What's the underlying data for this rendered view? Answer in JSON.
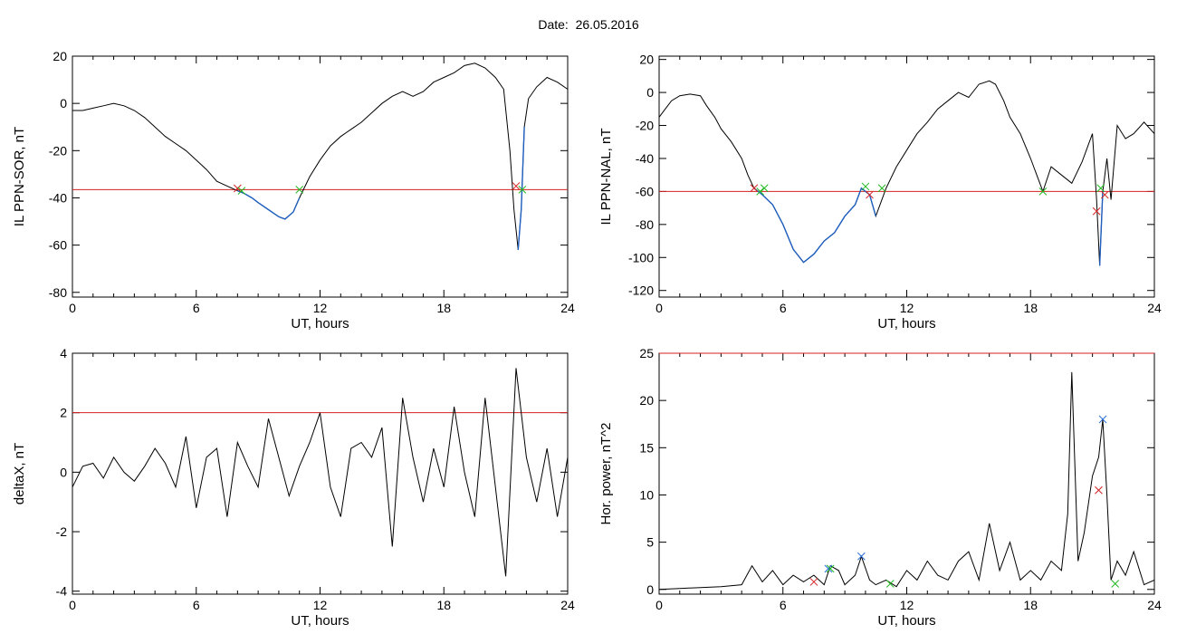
{
  "figure_title": "Date:  26.05.2016",
  "colors": {
    "trace": "#000000",
    "threshold": "#d62020",
    "event_trace": "#1f5fbf",
    "cross_red": "#d62020",
    "cross_green": "#22bb22",
    "cross_blue": "#2a6fd6"
  },
  "chart_data": [
    {
      "type": "line",
      "id": "sor",
      "xlabel": "UT, hours",
      "ylabel": "IL PPN-SOR, nT",
      "xlim": [
        0,
        24
      ],
      "ylim": [
        -82,
        20
      ],
      "xticks": [
        0,
        6,
        12,
        18,
        24
      ],
      "yticks": [
        -80,
        -60,
        -40,
        -20,
        0,
        20
      ],
      "threshold": -36.5,
      "series": [
        {
          "color": "black",
          "x": [
            0,
            0.5,
            1,
            1.5,
            2,
            2.5,
            3,
            3.5,
            4,
            4.5,
            5,
            5.5,
            6,
            6.5,
            7,
            7.5,
            8,
            8.3,
            8.7,
            9,
            9.5,
            10,
            10.3,
            10.7,
            11,
            11.5,
            12,
            12.5,
            13,
            13.5,
            14,
            14.5,
            15,
            15.5,
            16,
            16.5,
            17,
            17.5,
            18,
            18.5,
            19,
            19.5,
            20,
            20.5,
            20.9,
            21.2,
            21.4,
            21.6,
            21.75,
            21.9,
            22.1,
            22.5,
            23,
            23.5,
            24
          ],
          "y": [
            -3,
            -3,
            -2,
            -1,
            0,
            -1,
            -3,
            -6,
            -10,
            -14,
            -17,
            -20,
            -24,
            -28,
            -33,
            -35,
            -37,
            -38,
            -40,
            -42,
            -45,
            -48,
            -49,
            -46,
            -40,
            -31,
            -24,
            -18,
            -14,
            -11,
            -8,
            -4,
            0,
            3,
            5,
            3,
            5,
            9,
            11,
            13,
            16,
            17,
            15,
            11,
            6,
            -20,
            -45,
            -62,
            -45,
            -10,
            2,
            7,
            11,
            9,
            6
          ]
        }
      ],
      "highlight_segments": [
        {
          "from": 8.0,
          "to": 11.0
        },
        {
          "from": 21.5,
          "to": 21.9
        }
      ],
      "crosses": [
        {
          "x": 8.0,
          "y": -36,
          "color": "red"
        },
        {
          "x": 8.2,
          "y": -37,
          "color": "green"
        },
        {
          "x": 11.0,
          "y": -36.5,
          "color": "green"
        },
        {
          "x": 21.5,
          "y": -35,
          "color": "red"
        },
        {
          "x": 21.8,
          "y": -36.5,
          "color": "green"
        }
      ]
    },
    {
      "type": "line",
      "id": "nal",
      "xlabel": "UT, hours",
      "ylabel": "IL PPN-NAL, nT",
      "xlim": [
        0,
        24
      ],
      "ylim": [
        -124,
        22
      ],
      "xticks": [
        0,
        6,
        12,
        18,
        24
      ],
      "yticks": [
        -120,
        -100,
        -80,
        -60,
        -40,
        -20,
        0,
        20
      ],
      "threshold": -60,
      "series": [
        {
          "color": "black",
          "x": [
            0,
            0.3,
            0.6,
            1,
            1.5,
            2,
            2.3,
            2.7,
            3,
            3.5,
            4,
            4.3,
            4.6,
            5,
            5.5,
            6,
            6.5,
            7,
            7.5,
            8,
            8.5,
            9,
            9.5,
            9.8,
            10.2,
            10.5,
            11,
            11.5,
            12,
            12.5,
            13,
            13.5,
            14,
            14.5,
            15,
            15.5,
            16,
            16.3,
            16.7,
            17,
            17.5,
            18,
            18.3,
            18.6,
            19,
            19.5,
            20,
            20.5,
            21,
            21.2,
            21.35,
            21.5,
            21.7,
            21.9,
            22.2,
            22.6,
            23,
            23.5,
            24
          ],
          "y": [
            -15,
            -10,
            -5,
            -2,
            -1,
            -2,
            -8,
            -15,
            -22,
            -30,
            -40,
            -50,
            -58,
            -62,
            -68,
            -80,
            -95,
            -103,
            -98,
            -90,
            -85,
            -75,
            -68,
            -58,
            -62,
            -75,
            -58,
            -45,
            -35,
            -25,
            -18,
            -10,
            -5,
            0,
            -3,
            5,
            7,
            5,
            -5,
            -15,
            -25,
            -40,
            -50,
            -60,
            -45,
            -50,
            -55,
            -42,
            -25,
            -65,
            -105,
            -60,
            -40,
            -65,
            -20,
            -28,
            -25,
            -18,
            -25
          ]
        }
      ],
      "highlight_segments": [
        {
          "from": 4.5,
          "to": 10.8
        },
        {
          "from": 18.6,
          "to": 18.7
        },
        {
          "from": 21.3,
          "to": 21.6
        }
      ],
      "crosses": [
        {
          "x": 4.6,
          "y": -58,
          "color": "red"
        },
        {
          "x": 4.9,
          "y": -60,
          "color": "green"
        },
        {
          "x": 5.1,
          "y": -58,
          "color": "green"
        },
        {
          "x": 10.0,
          "y": -57,
          "color": "green"
        },
        {
          "x": 10.2,
          "y": -62,
          "color": "red"
        },
        {
          "x": 10.8,
          "y": -58,
          "color": "green"
        },
        {
          "x": 18.6,
          "y": -60,
          "color": "green"
        },
        {
          "x": 21.2,
          "y": -72,
          "color": "red"
        },
        {
          "x": 21.4,
          "y": -58,
          "color": "green"
        },
        {
          "x": 21.6,
          "y": -62,
          "color": "red"
        }
      ]
    },
    {
      "type": "line",
      "id": "deltax",
      "xlabel": "UT, hours",
      "ylabel": "deltaX, nT",
      "xlim": [
        0,
        24
      ],
      "ylim": [
        -4.1,
        4
      ],
      "xticks": [
        0,
        6,
        12,
        18,
        24
      ],
      "yticks": [
        -4,
        -2,
        0,
        2,
        4
      ],
      "threshold": 2,
      "series": [
        {
          "color": "black",
          "x": [
            0,
            0.5,
            1,
            1.5,
            2,
            2.5,
            3,
            3.5,
            4,
            4.5,
            5,
            5.5,
            6,
            6.5,
            7,
            7.5,
            8,
            8.5,
            9,
            9.5,
            10,
            10.5,
            11,
            11.5,
            12,
            12.5,
            13,
            13.5,
            14,
            14.5,
            15,
            15.5,
            16,
            16.5,
            17,
            17.5,
            18,
            18.5,
            19,
            19.5,
            20,
            20.5,
            21,
            21.5,
            22,
            22.5,
            23,
            23.5,
            24
          ],
          "y": [
            -0.5,
            0.2,
            0.3,
            -0.2,
            0.5,
            0,
            -0.3,
            0.2,
            0.8,
            0.3,
            -0.5,
            1.2,
            -1.2,
            0.5,
            0.8,
            -1.5,
            1,
            0.2,
            -0.5,
            1.8,
            0.5,
            -0.8,
            0.2,
            1,
            2,
            -0.5,
            -1.5,
            0.8,
            1,
            0.5,
            1.5,
            -2.5,
            2.5,
            0.5,
            -1,
            0.8,
            -0.5,
            2.2,
            0,
            -1.5,
            2.5,
            -0.5,
            -3.5,
            3.5,
            0.5,
            -1,
            0.8,
            -1.5,
            0.5
          ]
        }
      ]
    },
    {
      "type": "line",
      "id": "power",
      "xlabel": "UT, hours",
      "ylabel": "Hor. power, nT^2",
      "xlim": [
        0,
        24
      ],
      "ylim": [
        -0.5,
        25
      ],
      "xticks": [
        0,
        6,
        12,
        18,
        24
      ],
      "yticks": [
        0,
        5,
        10,
        15,
        20,
        25
      ],
      "threshold": 25,
      "series": [
        {
          "color": "black",
          "x": [
            0,
            1,
            2,
            3,
            4,
            4.5,
            5,
            5.5,
            6,
            6.5,
            7,
            7.5,
            8,
            8.3,
            8.7,
            9,
            9.5,
            9.8,
            10.2,
            10.5,
            11,
            11.5,
            12,
            12.5,
            13,
            13.5,
            14,
            14.5,
            15,
            15.5,
            16,
            16.5,
            17,
            17.5,
            18,
            18.5,
            19,
            19.5,
            19.8,
            20,
            20.3,
            20.6,
            21,
            21.3,
            21.5,
            21.7,
            21.9,
            22.2,
            22.6,
            23,
            23.5,
            24
          ],
          "y": [
            0,
            0.1,
            0.2,
            0.3,
            0.5,
            2.5,
            0.8,
            2,
            0.5,
            1.5,
            0.8,
            1.5,
            0.5,
            2.5,
            2,
            0.5,
            1.5,
            3.5,
            1,
            0.5,
            1,
            0.3,
            2,
            1,
            3,
            1.5,
            1,
            3,
            4,
            1,
            7,
            2,
            5,
            1,
            2,
            1,
            3,
            2,
            8,
            23,
            3,
            6,
            12,
            14,
            18,
            10,
            1,
            3,
            1.5,
            4,
            0.5,
            1
          ]
        }
      ],
      "crosses": [
        {
          "x": 7.5,
          "y": 0.8,
          "color": "red"
        },
        {
          "x": 8.2,
          "y": 2.2,
          "color": "blue"
        },
        {
          "x": 8.3,
          "y": 2.2,
          "color": "green"
        },
        {
          "x": 9.8,
          "y": 3.5,
          "color": "blue"
        },
        {
          "x": 11.2,
          "y": 0.6,
          "color": "green"
        },
        {
          "x": 21.3,
          "y": 10.5,
          "color": "red"
        },
        {
          "x": 21.5,
          "y": 18,
          "color": "blue"
        },
        {
          "x": 22.1,
          "y": 0.6,
          "color": "green"
        }
      ]
    }
  ]
}
